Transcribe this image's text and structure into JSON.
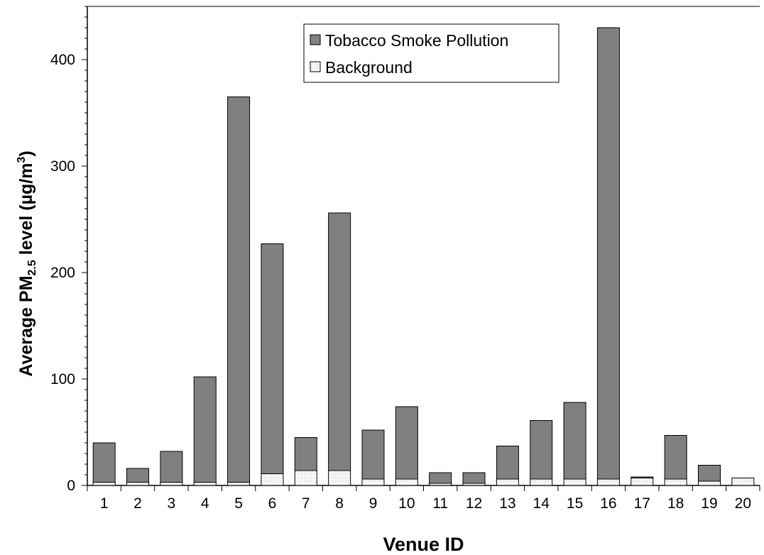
{
  "chart_data": {
    "type": "bar",
    "stacked": true,
    "categories": [
      "1",
      "2",
      "3",
      "4",
      "5",
      "6",
      "7",
      "8",
      "9",
      "10",
      "11",
      "12",
      "13",
      "14",
      "15",
      "16",
      "17",
      "18",
      "19",
      "20"
    ],
    "series": [
      {
        "name": "Background",
        "values": [
          3,
          3,
          3,
          3,
          3,
          11,
          14,
          14,
          6,
          6,
          2,
          2,
          6,
          6,
          6,
          6,
          7,
          6,
          4,
          7
        ],
        "color": "#ffffff",
        "pattern": "dotted"
      },
      {
        "name": "Tobacco Smoke Pollution",
        "values": [
          37,
          13,
          29,
          99,
          362,
          216,
          31,
          242,
          46,
          68,
          10,
          10,
          31,
          55,
          72,
          424,
          1,
          41,
          15,
          0
        ],
        "color": "#808080"
      }
    ],
    "xlabel": "Venue ID",
    "ylabel": {
      "prefix": "Average PM",
      "subscript": "2.5",
      "middle": " level (µg/m",
      "superscript": "3",
      "suffix": ")"
    },
    "ylim": [
      0,
      450
    ],
    "yticks": [
      0,
      100,
      200,
      300,
      400
    ],
    "grid": false,
    "legend": {
      "position": "top-center",
      "order": [
        "Tobacco Smoke Pollution",
        "Background"
      ]
    }
  }
}
